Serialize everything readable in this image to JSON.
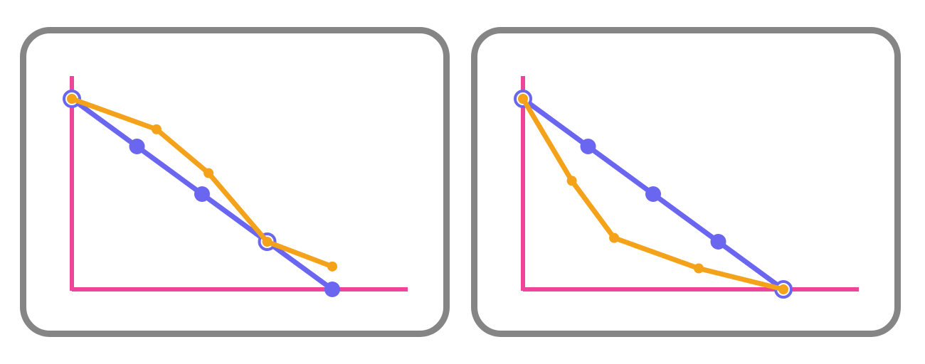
{
  "colors": {
    "axis": "#ee4499",
    "blue": "#6a66f0",
    "orange": "#f4a21a",
    "frame": "#858585"
  },
  "chart_data": [
    {
      "type": "line",
      "title": "",
      "xlabel": "",
      "ylabel": "",
      "xlim": [
        0,
        5
      ],
      "ylim": [
        0,
        1
      ],
      "grid": false,
      "legend": "none",
      "series": [
        {
          "color": "#6a66f0",
          "marker_style": "circle",
          "x": [
            0,
            1,
            2,
            3,
            4
          ],
          "y": [
            1.0,
            0.75,
            0.5,
            0.25,
            0.0
          ],
          "hollow_markers": [
            0,
            3
          ]
        },
        {
          "color": "#f4a21a",
          "marker_style": "small-circle",
          "x": [
            0,
            1.3,
            2.1,
            3.0,
            4.0
          ],
          "y": [
            1.0,
            0.84,
            0.61,
            0.25,
            0.12
          ]
        }
      ]
    },
    {
      "type": "line",
      "title": "",
      "xlabel": "",
      "ylabel": "",
      "xlim": [
        0,
        5
      ],
      "ylim": [
        0,
        1
      ],
      "grid": false,
      "legend": "none",
      "series": [
        {
          "color": "#6a66f0",
          "marker_style": "circle",
          "x": [
            0,
            1,
            2,
            3,
            4
          ],
          "y": [
            1.0,
            0.75,
            0.5,
            0.25,
            0.0
          ],
          "hollow_markers": [
            0,
            4
          ]
        },
        {
          "color": "#f4a21a",
          "marker_style": "small-circle",
          "x": [
            0,
            0.75,
            1.4,
            2.7,
            4.0
          ],
          "y": [
            1.0,
            0.57,
            0.27,
            0.11,
            0.0
          ]
        }
      ]
    }
  ]
}
